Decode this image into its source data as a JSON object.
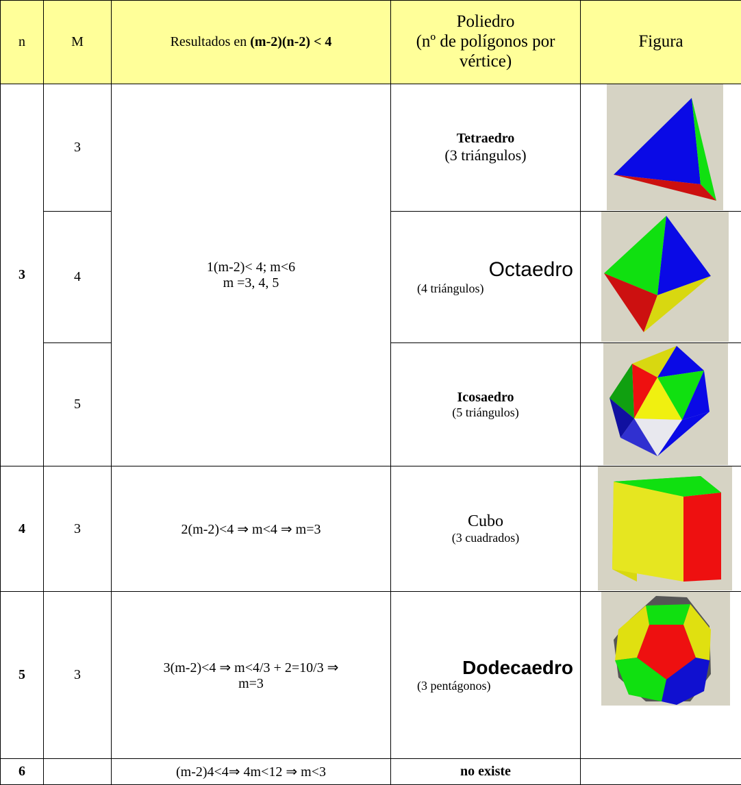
{
  "table": {
    "header": {
      "n": "n",
      "m": "M",
      "result": "Resultados en",
      "result_bold": "(m-2)(n-2) < 4",
      "poliedro": [
        "Poliedro",
        "(nº de polígonos por",
        "vértice)"
      ],
      "figura": "Figura"
    },
    "rows": [
      {
        "n": "3",
        "m": "3",
        "result": [
          "1(m-2)< 4; m<6",
          "m =3, 4, 5"
        ],
        "name": "Tetraedro",
        "detail": "(3 triángulos)"
      },
      {
        "m": "4",
        "name": "Octaedro",
        "detail": "(4 triángulos)"
      },
      {
        "m": "5",
        "name": "Icosaedro",
        "detail": "(5 triángulos)"
      },
      {
        "n": "4",
        "m": "3",
        "result": [
          "2(m-2)<4 ⇒ m<4 ⇒ m=3"
        ],
        "name": "Cubo",
        "detail": "(3 cuadrados)"
      },
      {
        "n": "5",
        "m": "3",
        "result": [
          "3(m-2)<4 ⇒ m<4/3 + 2=10/3  ⇒",
          "m=3"
        ],
        "name": "Dodecaedro",
        "detail": "(3 pentágonos)"
      },
      {
        "n": "6",
        "result": [
          "(m-2)4<4⇒ 4m<12 ⇒ m<3"
        ],
        "name": "no existe"
      }
    ]
  }
}
